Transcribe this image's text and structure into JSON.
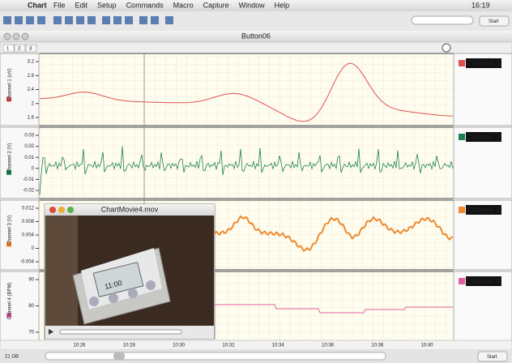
{
  "menu_bar": {
    "app": "Chart",
    "items": [
      "File",
      "Edit",
      "Setup",
      "Commands",
      "Macro",
      "Capture",
      "Window",
      "Help"
    ],
    "clock": "16:19"
  },
  "toolbar": {
    "start_button": "Start"
  },
  "window": {
    "title": "Button06",
    "tabs": [
      "1",
      "2",
      "3"
    ]
  },
  "channels": [
    {
      "name": "Channel 1",
      "axis_label": "Channel 1 (uV)",
      "yticks": [
        "3.2",
        "2.8",
        "2.4",
        "2",
        "1.6"
      ]
    },
    {
      "name": "Channel 2",
      "axis_label": "Channel 2 (V)",
      "yticks": [
        "0.03",
        "0.02",
        "0.01",
        "0",
        "-0.01",
        "-0.02"
      ]
    },
    {
      "name": "Channel 3",
      "axis_label": "Channel 3 (V)",
      "yticks": [
        "0.012",
        "0.008",
        "0.004",
        "0",
        "-0.004"
      ]
    },
    {
      "name": "Channel 4",
      "axis_label": "Channel 4 (BPM)",
      "yticks": [
        "90",
        "80",
        "70"
      ]
    }
  ],
  "time_axis": {
    "ticks": [
      "10:26",
      "10:28",
      "10:30",
      "10:32",
      "10:34",
      "10:36",
      "10:38",
      "10:40"
    ]
  },
  "movie": {
    "title": "ChartMovie4.mov",
    "display_time": "11:00"
  },
  "status": {
    "disk": "21 GB",
    "start_button": "Start"
  }
}
